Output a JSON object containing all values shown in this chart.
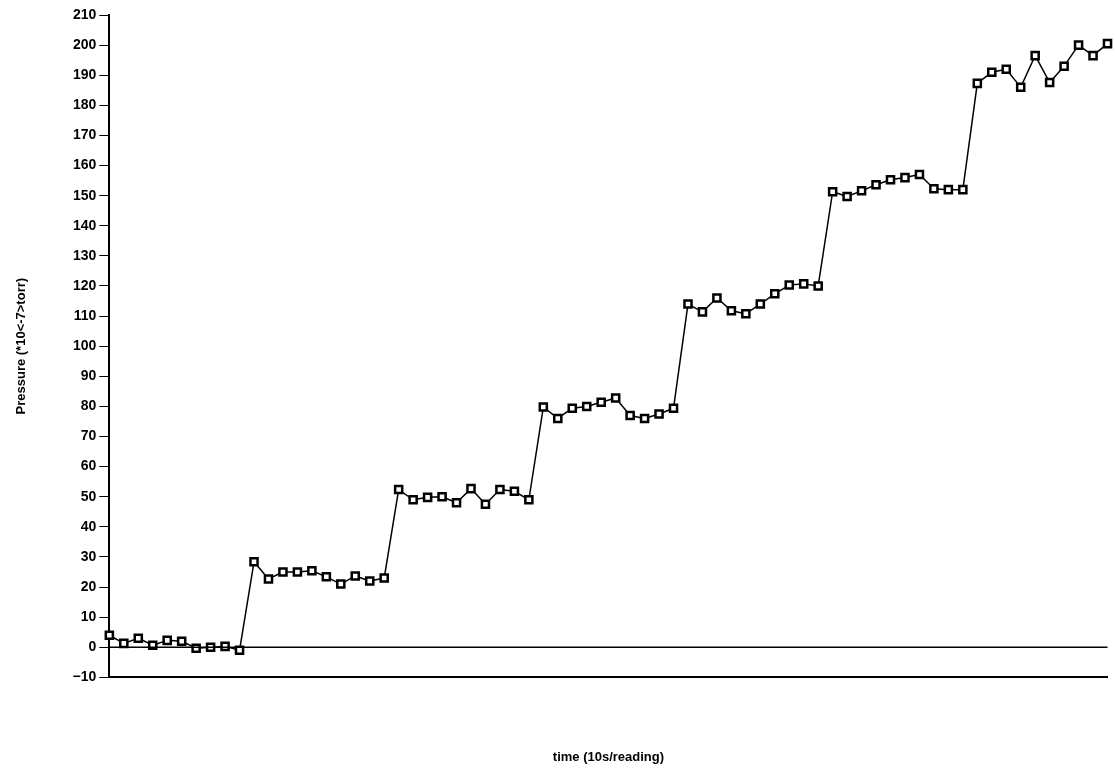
{
  "chart_data": {
    "type": "line",
    "xlabel": "time (10s/reading)",
    "ylabel": "Pressure (*10<-7>torr)",
    "categories": [
      null,
      null,
      null,
      null,
      null,
      null,
      null,
      null,
      null,
      null,
      null,
      null,
      null,
      null,
      null,
      null,
      null,
      null,
      null,
      null,
      null,
      null,
      null,
      null,
      null,
      null,
      null,
      null,
      null,
      null,
      null,
      null,
      null,
      null,
      null,
      null,
      null,
      null,
      null,
      null,
      null,
      null,
      null,
      null,
      null,
      null,
      null,
      null,
      null,
      null,
      null,
      null,
      null,
      null,
      null,
      null,
      null,
      null,
      null,
      null,
      null,
      null,
      null,
      null,
      null,
      null,
      null,
      null,
      null,
      null
    ],
    "series": [
      {
        "color": "#000000",
        "values": [
          4,
          1.3,
          3,
          0.7,
          2.3,
          2,
          -0.3,
          0,
          0.3,
          -1,
          28.4,
          22.7,
          25,
          25,
          25.4,
          23.4,
          21,
          23.7,
          22,
          23,
          52.4,
          49,
          49.8,
          50,
          48,
          52.7,
          47.5,
          52.4,
          51.8,
          49,
          79.8,
          76,
          79.4,
          80,
          81.4,
          82.8,
          77,
          76,
          77.5,
          79.4,
          114,
          111.4,
          116,
          111.8,
          110.8,
          114,
          117.4,
          120.3,
          120.7,
          120,
          151.3,
          149.7,
          151.6,
          153.6,
          155.3,
          156,
          157,
          152.3,
          152,
          152,
          187.3,
          191,
          192,
          186,
          196.5,
          187.6,
          193,
          200,
          196.5,
          200.5
        ]
      }
    ],
    "ylim": [
      -10,
      210
    ],
    "yticks": [
      -10,
      0,
      10,
      20,
      30,
      40,
      50,
      60,
      70,
      80,
      90,
      100,
      110,
      120,
      130,
      140,
      150,
      160,
      170,
      180,
      190,
      200,
      210
    ],
    "ref_lines": [
      {
        "axis": "y",
        "value": 0,
        "color": "#000000"
      }
    ],
    "tick_labels": "y",
    "marker": "square",
    "line_style": "solid",
    "grid": false,
    "legend": false
  }
}
